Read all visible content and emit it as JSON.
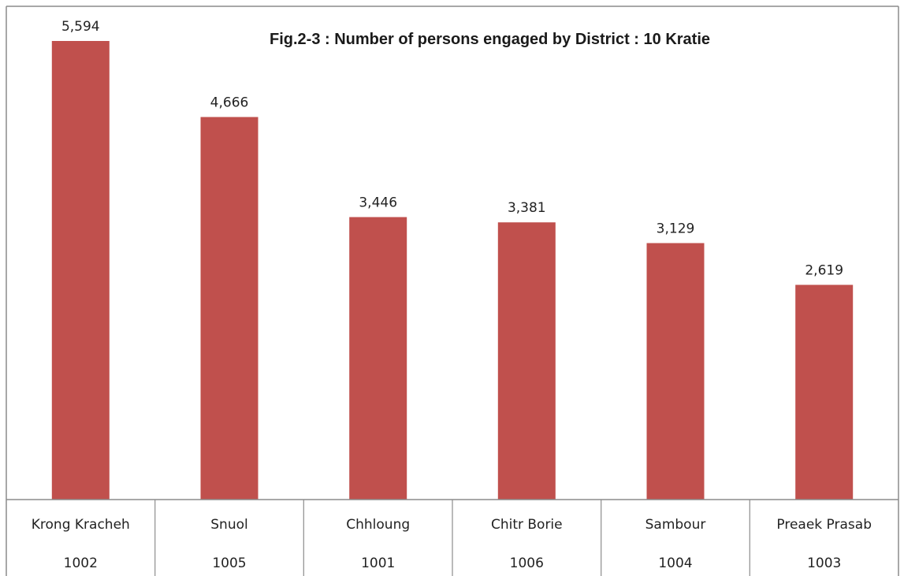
{
  "chart_data": {
    "type": "bar",
    "title": "Fig.2-3  : Number of persons engaged by District : 10 Kratie",
    "categories": [
      "Krong Kracheh",
      "Snuol",
      "Chhloung",
      "Chitr Borie",
      "Sambour",
      "Preaek Prasab"
    ],
    "codes": [
      "1002",
      "1005",
      "1001",
      "1006",
      "1004",
      "1003"
    ],
    "values": [
      5594,
      4666,
      3446,
      3381,
      3129,
      2619
    ],
    "value_labels": [
      "5,594",
      "4,666",
      "3,446",
      "3,381",
      "3,129",
      "2,619"
    ],
    "ylim": [
      0,
      6000
    ],
    "grid": false,
    "legend": "none",
    "bar_color": "#c0504d",
    "axis_color": "#8c8c8c"
  }
}
